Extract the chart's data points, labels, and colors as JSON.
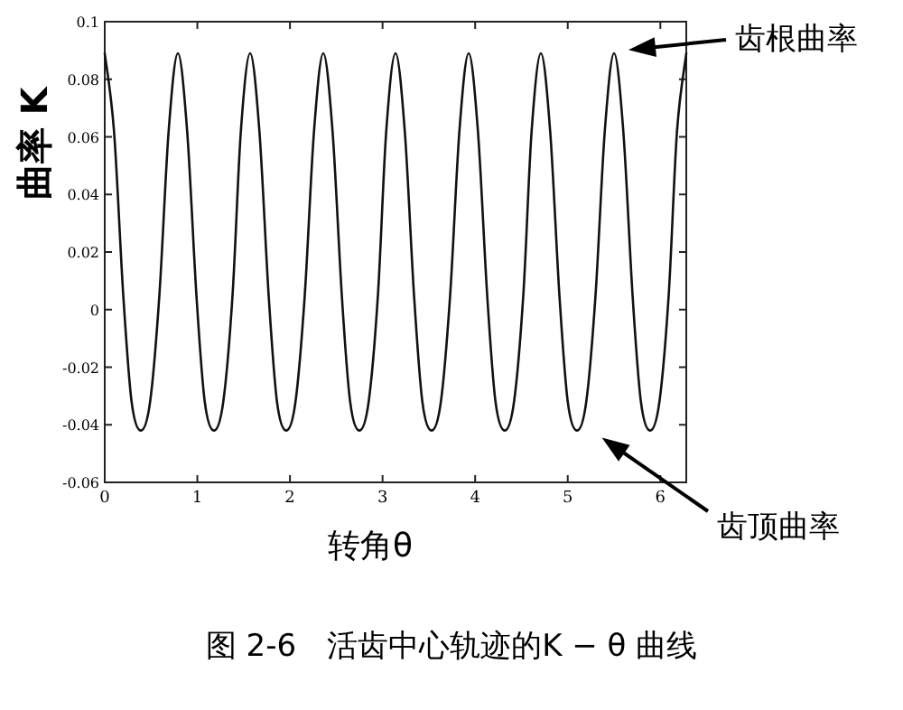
{
  "chart_data": {
    "type": "line",
    "title": "图 2-6　活齿中心轨迹的K − θ 曲线",
    "xlabel": "转角θ",
    "ylabel": "曲率 K",
    "x": [
      0,
      0.1,
      0.2,
      0.29,
      0.39,
      0.49,
      0.59,
      0.69,
      0.79,
      0.89,
      0.99,
      1.08,
      1.18,
      1.28,
      1.38,
      1.47,
      1.57,
      1.67,
      1.77,
      1.86,
      1.96,
      2.06,
      2.16,
      2.26,
      2.36,
      2.46,
      2.56,
      2.65,
      2.75,
      2.85,
      2.95,
      3.04,
      3.14,
      3.24,
      3.34,
      3.43,
      3.53,
      3.63,
      3.73,
      3.83,
      3.93,
      4.03,
      4.13,
      4.22,
      4.32,
      4.42,
      4.52,
      4.61,
      4.71,
      4.81,
      4.91,
      5.0,
      5.1,
      5.2,
      5.3,
      5.4,
      5.5,
      5.6,
      5.7,
      5.79,
      5.89,
      5.99,
      6.09,
      6.18,
      6.28
    ],
    "series": [
      {
        "color": "#111111",
        "values": [
          0.089,
          0.062,
          0.005,
          -0.032,
          -0.042,
          -0.032,
          0.005,
          0.062,
          0.089,
          0.062,
          0.005,
          -0.032,
          -0.042,
          -0.032,
          0.005,
          0.062,
          0.089,
          0.062,
          0.005,
          -0.032,
          -0.042,
          -0.032,
          0.005,
          0.062,
          0.089,
          0.062,
          0.005,
          -0.032,
          -0.042,
          -0.032,
          0.005,
          0.062,
          0.089,
          0.062,
          0.005,
          -0.032,
          -0.042,
          -0.032,
          0.005,
          0.062,
          0.089,
          0.062,
          0.005,
          -0.032,
          -0.042,
          -0.032,
          0.005,
          0.062,
          0.089,
          0.062,
          0.005,
          -0.032,
          -0.042,
          -0.032,
          0.005,
          0.062,
          0.089,
          0.062,
          0.005,
          -0.032,
          -0.042,
          -0.032,
          0.005,
          0.062,
          0.089
        ]
      }
    ],
    "xlim": [
      0,
      6.28
    ],
    "ylim": [
      -0.06,
      0.1
    ],
    "xticks": [
      0,
      1,
      2,
      3,
      4,
      5,
      6
    ],
    "yticks": [
      -0.06,
      -0.04,
      -0.02,
      0,
      0.02,
      0.04,
      0.06,
      0.08,
      0.1
    ],
    "annotations": [
      "齿根曲率",
      "齿顶曲率"
    ],
    "grid": false,
    "marker": "none",
    "line_style": "solid"
  }
}
